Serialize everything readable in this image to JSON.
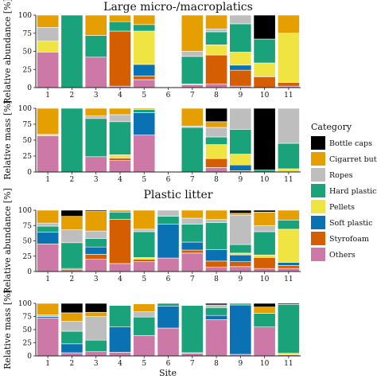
{
  "titles": {
    "top": "Large micro-/macroplatics",
    "bottom": "Plastic litter"
  },
  "xlabel": "Site",
  "legend": {
    "title": "Category",
    "items": [
      {
        "name": "Bottle caps",
        "color": "#000000"
      },
      {
        "name": "Cigarret butts",
        "color": "#E69F00"
      },
      {
        "name": "Ropes",
        "color": "#BEBEBE"
      },
      {
        "name": "Hard plastic",
        "color": "#1AA37A"
      },
      {
        "name": "Pellets",
        "color": "#F0E442"
      },
      {
        "name": "Soft plastic",
        "color": "#0A72B2"
      },
      {
        "name": "Styrofoam",
        "color": "#D55E00"
      },
      {
        "name": "Others",
        "color": "#CC79A7"
      }
    ]
  },
  "chart_data": [
    {
      "type": "bar",
      "stacked": true,
      "group": "Large micro-/macroplatics",
      "ylabel": "Relative abundance [%]",
      "ylim": [
        0,
        100
      ],
      "yticks": [
        0,
        25,
        50,
        75,
        100
      ],
      "categories": [
        "1",
        "2",
        "3",
        "4",
        "5",
        "6",
        "7",
        "8",
        "9",
        "10",
        "11"
      ],
      "series": [
        {
          "name": "Others",
          "values": [
            49,
            0,
            42,
            2,
            11,
            0,
            4,
            5,
            2,
            0,
            2
          ]
        },
        {
          "name": "Styrofoam",
          "values": [
            0,
            0,
            0,
            76,
            5,
            0,
            1,
            40,
            22,
            15,
            5
          ]
        },
        {
          "name": "Soft plastic",
          "values": [
            0,
            0,
            0,
            0,
            16,
            0,
            0,
            0,
            7,
            0,
            0
          ]
        },
        {
          "name": "Pellets",
          "values": [
            15,
            0,
            0,
            0,
            46,
            0,
            0,
            14,
            18,
            19,
            68
          ]
        },
        {
          "name": "Hard plastic",
          "values": [
            0,
            100,
            30,
            13,
            9,
            0,
            38,
            18,
            39,
            33,
            0
          ]
        },
        {
          "name": "Ropes",
          "values": [
            19,
            0,
            0,
            0,
            0,
            0,
            7,
            4,
            12,
            0,
            0
          ]
        },
        {
          "name": "Cigarret butts",
          "values": [
            17,
            0,
            28,
            9,
            13,
            0,
            50,
            19,
            0,
            0,
            25
          ]
        },
        {
          "name": "Bottle caps",
          "values": [
            0,
            0,
            0,
            0,
            0,
            0,
            0,
            0,
            0,
            33,
            0
          ]
        }
      ]
    },
    {
      "type": "bar",
      "stacked": true,
      "group": "Large micro-/macroplatics",
      "ylabel": "Relative mass [%]",
      "ylim": [
        0,
        100
      ],
      "yticks": [
        0,
        25,
        50,
        75,
        100
      ],
      "categories": [
        "1",
        "2",
        "3",
        "4",
        "5",
        "6",
        "7",
        "8",
        "9",
        "10",
        "11"
      ],
      "series": [
        {
          "name": "Others",
          "values": [
            57,
            0,
            24,
            18,
            58,
            0,
            0,
            7,
            0,
            0,
            0
          ]
        },
        {
          "name": "Styrofoam",
          "values": [
            0,
            0,
            0,
            4,
            0,
            0,
            0,
            14,
            2,
            0,
            0
          ]
        },
        {
          "name": "Soft plastic",
          "values": [
            0,
            0,
            0,
            0,
            35,
            0,
            0,
            0,
            9,
            0,
            0
          ]
        },
        {
          "name": "Pellets",
          "values": [
            2,
            0,
            0,
            5,
            0,
            0,
            0,
            22,
            17,
            0,
            5
          ]
        },
        {
          "name": "Hard plastic",
          "values": [
            0,
            100,
            60,
            52,
            5,
            0,
            70,
            12,
            39,
            3,
            40
          ]
        },
        {
          "name": "Ropes",
          "values": [
            0,
            0,
            4,
            11,
            0,
            0,
            2,
            15,
            33,
            0,
            55
          ]
        },
        {
          "name": "Cigarret butts",
          "values": [
            41,
            0,
            12,
            10,
            2,
            0,
            28,
            9,
            0,
            0,
            0
          ]
        },
        {
          "name": "Bottle caps",
          "values": [
            0,
            0,
            0,
            0,
            0,
            0,
            0,
            21,
            0,
            97,
            0
          ]
        }
      ]
    },
    {
      "type": "bar",
      "stacked": true,
      "group": "Plastic litter",
      "ylabel": "Relative abundance [%]",
      "ylim": [
        0,
        100
      ],
      "yticks": [
        0,
        25,
        50,
        75,
        100
      ],
      "categories": [
        "1",
        "2",
        "3",
        "4",
        "5",
        "6",
        "7",
        "8",
        "9",
        "10",
        "11"
      ],
      "series": [
        {
          "name": "Others",
          "values": [
            45,
            3,
            20,
            13,
            16,
            22,
            30,
            7,
            8,
            5,
            5
          ]
        },
        {
          "name": "Styrofoam",
          "values": [
            0,
            2,
            8,
            72,
            4,
            0,
            5,
            10,
            8,
            18,
            5
          ]
        },
        {
          "name": "Soft plastic",
          "values": [
            19,
            0,
            12,
            0,
            0,
            55,
            13,
            19,
            11,
            0,
            5
          ]
        },
        {
          "name": "Pellets",
          "values": [
            0,
            0,
            0,
            0,
            3,
            0,
            0,
            0,
            3,
            4,
            54
          ]
        },
        {
          "name": "Hard plastic",
          "values": [
            10,
            42,
            14,
            12,
            42,
            13,
            29,
            44,
            14,
            38,
            15
          ]
        },
        {
          "name": "Ropes",
          "values": [
            5,
            21,
            12,
            0,
            4,
            10,
            10,
            5,
            48,
            10,
            0
          ]
        },
        {
          "name": "Cigarret butts",
          "values": [
            21,
            22,
            32,
            3,
            31,
            0,
            13,
            15,
            3,
            22,
            16
          ]
        },
        {
          "name": "Bottle caps",
          "values": [
            0,
            10,
            2,
            0,
            0,
            0,
            0,
            0,
            5,
            3,
            0
          ]
        }
      ]
    },
    {
      "type": "bar",
      "stacked": true,
      "group": "Plastic litter",
      "ylabel": "Relative mass [%]",
      "ylim": [
        0,
        100
      ],
      "yticks": [
        0,
        25,
        50,
        75,
        100
      ],
      "categories": [
        "1",
        "2",
        "3",
        "4",
        "5",
        "6",
        "7",
        "8",
        "9",
        "10",
        "11"
      ],
      "series": [
        {
          "name": "Others",
          "values": [
            72,
            6,
            8,
            7,
            39,
            53,
            5,
            69,
            3,
            55,
            2
          ]
        },
        {
          "name": "Styrofoam",
          "values": [
            0,
            0,
            0,
            0,
            0,
            0,
            1,
            0,
            0,
            0,
            0
          ]
        },
        {
          "name": "Soft plastic",
          "values": [
            3,
            17,
            0,
            48,
            0,
            42,
            0,
            8,
            94,
            0,
            0
          ]
        },
        {
          "name": "Pellets",
          "values": [
            0,
            0,
            0,
            0,
            0,
            0,
            0,
            0,
            0,
            0,
            3
          ]
        },
        {
          "name": "Hard plastic",
          "values": [
            0,
            24,
            22,
            41,
            35,
            5,
            90,
            15,
            3,
            26,
            93
          ]
        },
        {
          "name": "Ropes",
          "values": [
            3,
            19,
            45,
            0,
            10,
            0,
            0,
            5,
            0,
            0,
            0
          ]
        },
        {
          "name": "Cigarret butts",
          "values": [
            22,
            16,
            8,
            0,
            15,
            0,
            1,
            0,
            0,
            12,
            0
          ]
        },
        {
          "name": "Bottle caps",
          "values": [
            0,
            18,
            17,
            0,
            0,
            0,
            0,
            3,
            0,
            7,
            2
          ]
        }
      ]
    }
  ]
}
